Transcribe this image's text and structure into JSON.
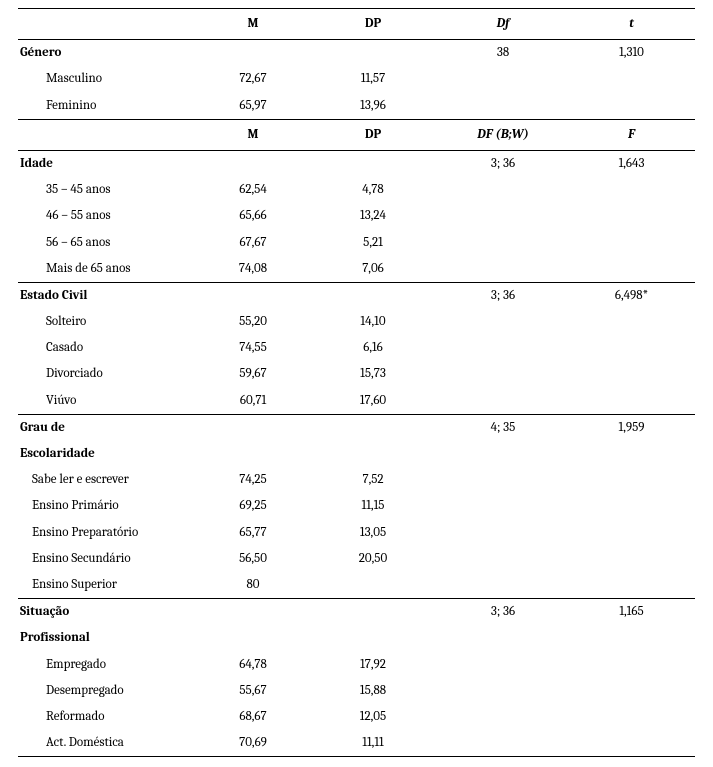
{
  "colors": {
    "text": "#000000",
    "background": "#ffffff",
    "rule": "#000000"
  },
  "typography": {
    "font_family": "Cambria, Georgia, serif",
    "font_size_pt": 10,
    "header_weight": "bold",
    "row_weight": "normal"
  },
  "header1": {
    "label": "",
    "M": "M",
    "DP": "DP",
    "Df": "Df",
    "t": "t"
  },
  "genero": {
    "label": "Género",
    "df": "38",
    "t": "1,310",
    "rows": [
      {
        "label": "Masculino",
        "M": "72,67",
        "DP": "11,57"
      },
      {
        "label": "Feminino",
        "M": "65,97",
        "DP": "13,96"
      }
    ]
  },
  "header2": {
    "label": "",
    "M": "M",
    "DP": "DP",
    "Df": "DF (B;W)",
    "t": "F"
  },
  "idade": {
    "label": "Idade",
    "df": "3; 36",
    "t": "1,643",
    "rows": [
      {
        "label": "35 – 45 anos",
        "M": "62,54",
        "DP": "4,78"
      },
      {
        "label": "46 – 55 anos",
        "M": "65,66",
        "DP": "13,24"
      },
      {
        "label": "56 – 65 anos",
        "M": "67,67",
        "DP": "5,21"
      },
      {
        "label": "Mais de 65 anos",
        "M": "74,08",
        "DP": "7,06"
      }
    ]
  },
  "estado_civil": {
    "label": "Estado Civil",
    "df": "3; 36",
    "t": "6,498*",
    "rows": [
      {
        "label": "Solteiro",
        "M": "55,20",
        "DP": "14,10"
      },
      {
        "label": "Casado",
        "M": "74,55",
        "DP": "6,16"
      },
      {
        "label": "Divorciado",
        "M": "59,67",
        "DP": "15,73"
      },
      {
        "label": "Viúvo",
        "M": "60,71",
        "DP": "17,60"
      }
    ]
  },
  "escolaridade": {
    "label1": "Grau de",
    "label2": "Escolaridade",
    "df": "4; 35",
    "t": "1,959",
    "rows": [
      {
        "label": "Sabe ler e escrever",
        "M": "74,25",
        "DP": "7,52"
      },
      {
        "label": "Ensino Primário",
        "M": "69,25",
        "DP": "11,15"
      },
      {
        "label": "Ensino Preparatório",
        "M": "65,77",
        "DP": "13,05"
      },
      {
        "label": "Ensino Secundário",
        "M": "56,50",
        "DP": "20,50"
      },
      {
        "label": "Ensino Superior",
        "M": "80",
        "DP": ""
      }
    ]
  },
  "situacao": {
    "label1": "Situação",
    "label2": "Profissional",
    "df": "3; 36",
    "t": "1,165",
    "rows": [
      {
        "label": "Empregado",
        "M": "64,78",
        "DP": "17,92"
      },
      {
        "label": "Desempregado",
        "M": "55,67",
        "DP": "15,88"
      },
      {
        "label": "Reformado",
        "M": "68,67",
        "DP": "12,05"
      },
      {
        "label": "Act. Doméstica",
        "M": "70,69",
        "DP": "11,11"
      }
    ]
  }
}
